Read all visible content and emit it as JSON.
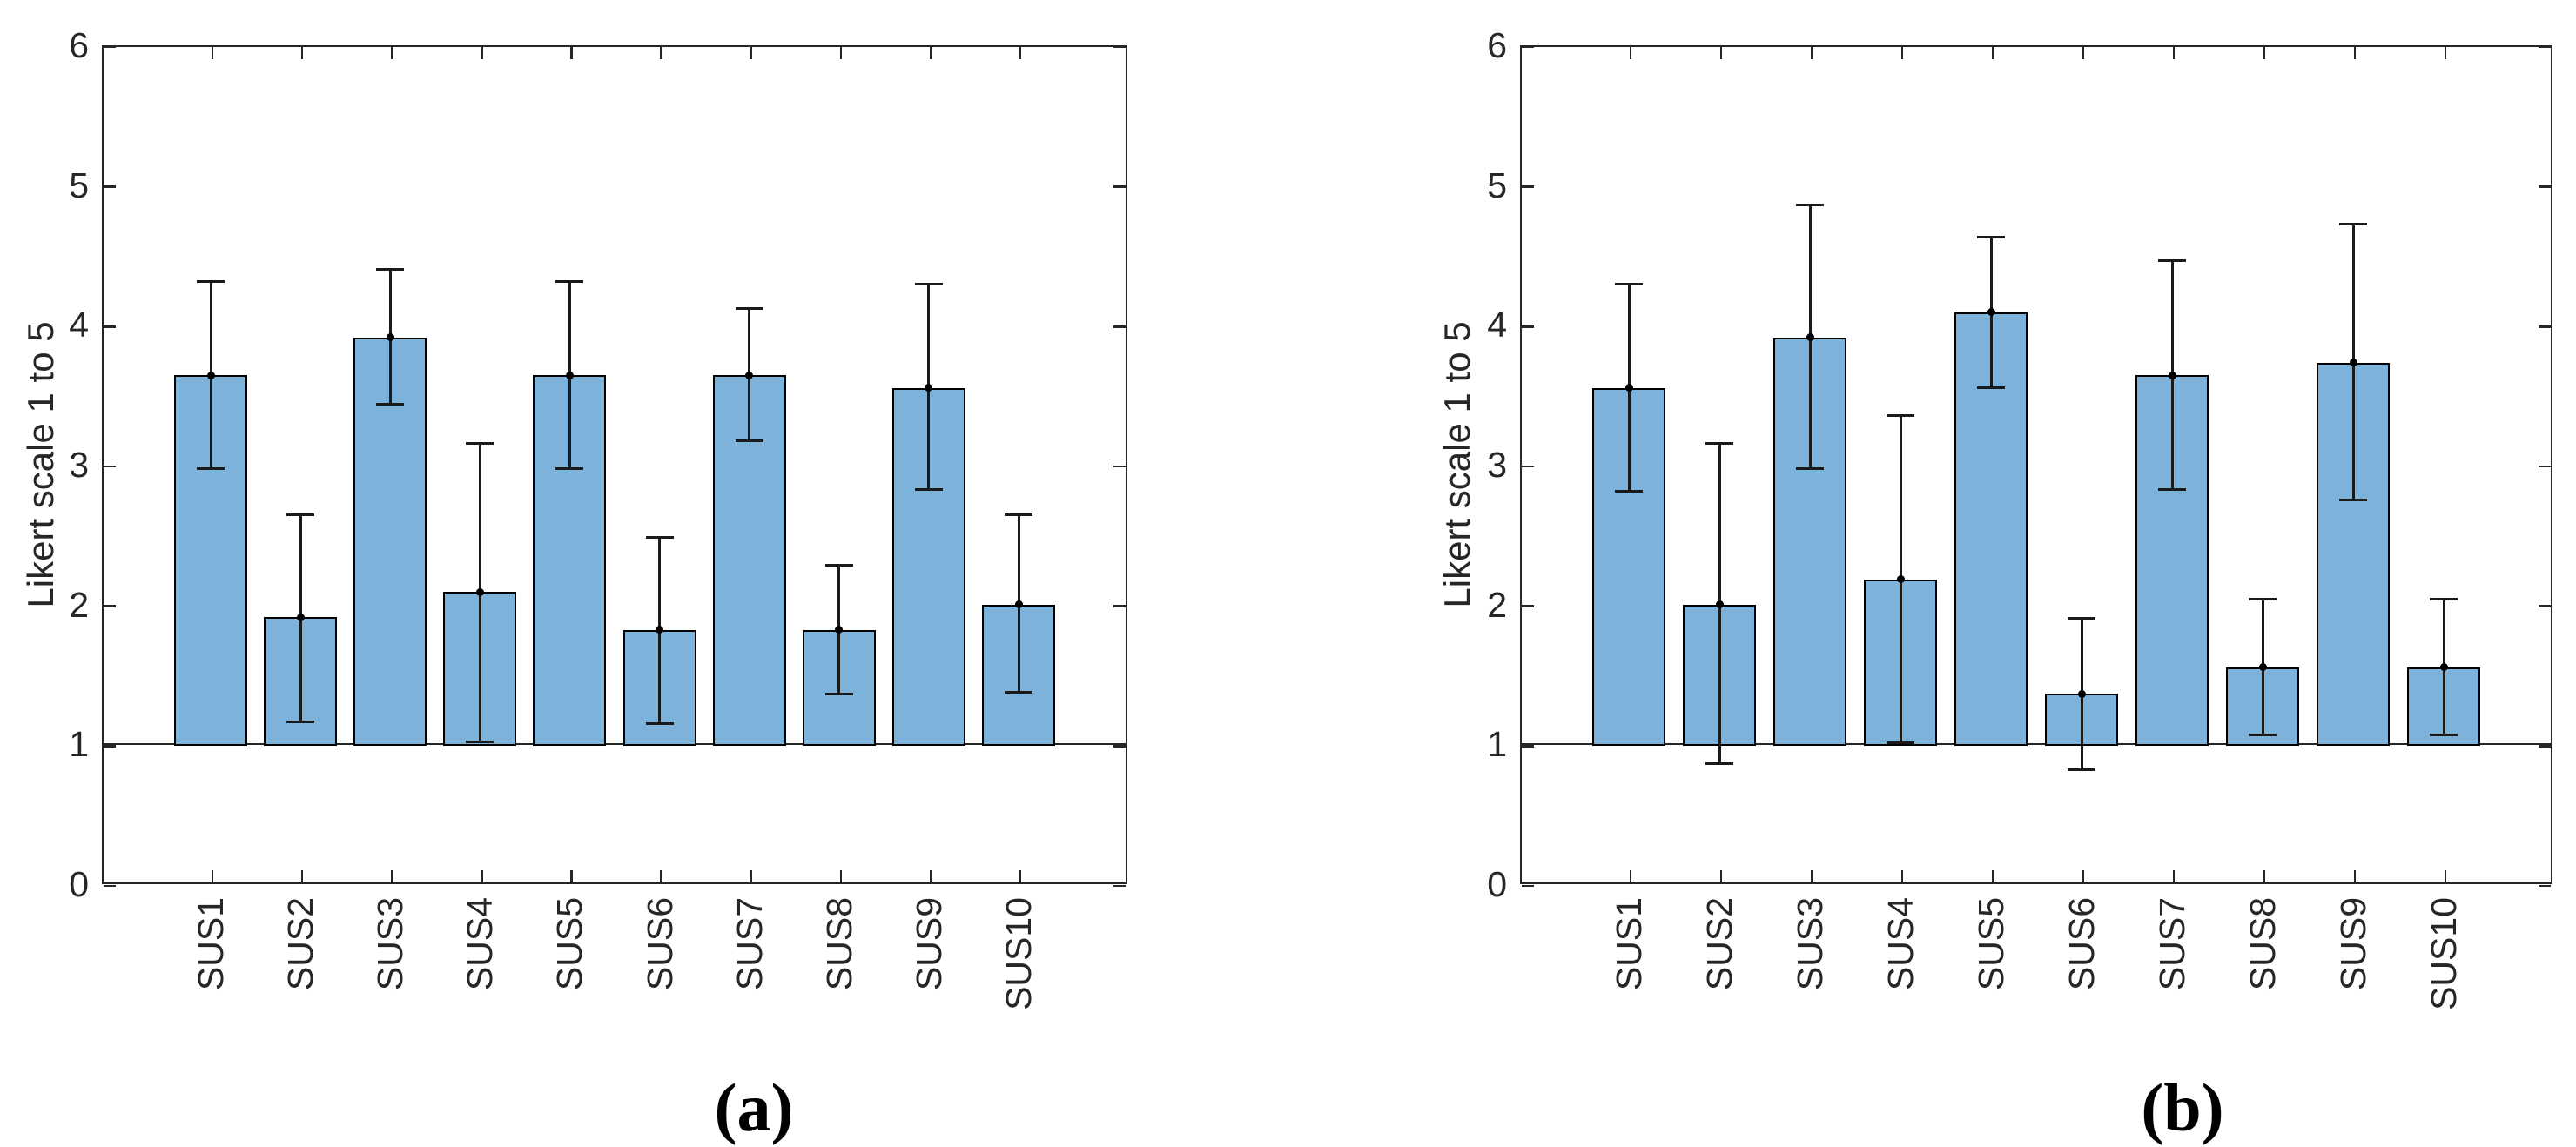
{
  "figure": {
    "background": "#ffffff",
    "axis_color": "#262626",
    "bar_fill": "#7DB2DB",
    "bar_edge": "#000000",
    "error_color": "#1a1a1a",
    "marker_color": "#000000"
  },
  "chart_data": [
    {
      "type": "bar",
      "caption": "(a)",
      "ylabel": "Likert scale 1 to 5",
      "xlabel": "",
      "ylim": [
        0,
        6
      ],
      "yticks": [
        0,
        1,
        2,
        3,
        4,
        5,
        6
      ],
      "bar_baseline": 1,
      "grid": false,
      "legend": null,
      "categories": [
        "SUS1",
        "SUS2",
        "SUS3",
        "SUS4",
        "SUS5",
        "SUS6",
        "SUS7",
        "SUS8",
        "SUS9",
        "SUS10"
      ],
      "values": [
        3.64,
        1.91,
        3.91,
        2.09,
        3.64,
        1.82,
        3.64,
        1.82,
        3.55,
        2.0
      ],
      "error_low": [
        2.97,
        1.16,
        3.43,
        1.02,
        2.97,
        1.15,
        3.17,
        1.36,
        2.82,
        1.37
      ],
      "error_high": [
        4.31,
        2.64,
        4.4,
        3.15,
        4.31,
        2.48,
        4.12,
        2.28,
        4.29,
        2.64
      ]
    },
    {
      "type": "bar",
      "caption": "(b)",
      "ylabel": "Likert scale 1 to 5",
      "xlabel": "",
      "ylim": [
        0,
        6
      ],
      "yticks": [
        0,
        1,
        2,
        3,
        4,
        5,
        6
      ],
      "bar_baseline": 1,
      "grid": false,
      "legend": null,
      "categories": [
        "SUS1",
        "SUS2",
        "SUS3",
        "SUS4",
        "SUS5",
        "SUS6",
        "SUS7",
        "SUS8",
        "SUS9",
        "SUS10"
      ],
      "values": [
        3.55,
        2.0,
        3.91,
        2.18,
        4.09,
        1.36,
        3.64,
        1.55,
        3.73,
        1.55
      ],
      "error_low": [
        2.81,
        0.86,
        2.97,
        1.01,
        3.55,
        0.82,
        2.82,
        1.07,
        2.75,
        1.07
      ],
      "error_high": [
        4.29,
        3.15,
        4.86,
        3.35,
        4.63,
        1.9,
        4.46,
        2.04,
        4.72,
        2.04
      ]
    }
  ]
}
